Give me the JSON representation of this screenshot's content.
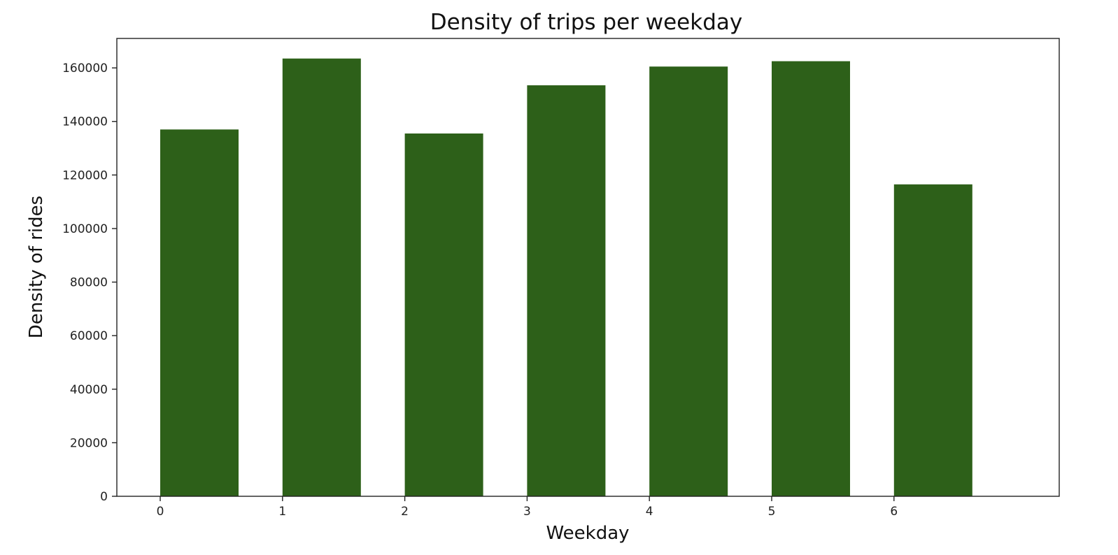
{
  "chart_data": {
    "type": "bar",
    "title": "Density of trips per weekday",
    "xlabel": "Weekday",
    "ylabel": "Density of rides",
    "categories": [
      "0",
      "1",
      "2",
      "3",
      "4",
      "5",
      "6"
    ],
    "series": [
      {
        "values": [
          137000,
          163500,
          135500,
          153500,
          160500,
          162500,
          116500
        ],
        "color": "#2d6019"
      }
    ],
    "x_ticks": [
      "0",
      "1",
      "2",
      "3",
      "4",
      "5",
      "6"
    ],
    "y_ticks": [
      "0",
      "20000",
      "40000",
      "60000",
      "80000",
      "100000",
      "120000",
      "140000",
      "160000"
    ],
    "ylim": [
      0,
      171000
    ],
    "grid": false,
    "legend": "none"
  }
}
